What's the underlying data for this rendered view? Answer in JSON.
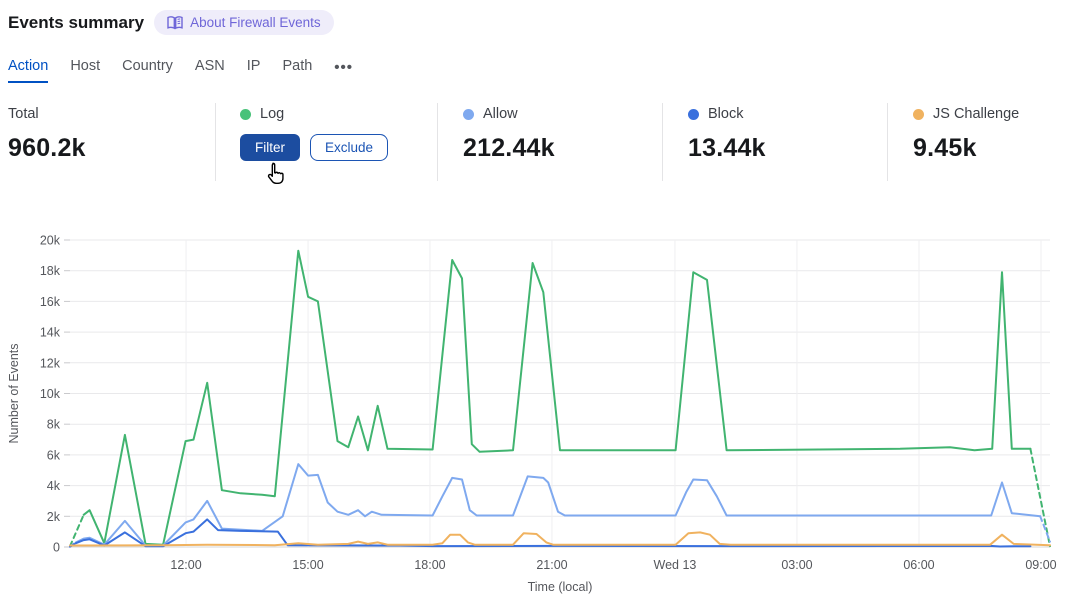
{
  "header": {
    "title": "Events summary",
    "about_label": "About Firewall Events"
  },
  "tabs": {
    "items": [
      {
        "label": "Action",
        "active": true
      },
      {
        "label": "Host",
        "active": false
      },
      {
        "label": "Country",
        "active": false
      },
      {
        "label": "ASN",
        "active": false
      },
      {
        "label": "IP",
        "active": false
      },
      {
        "label": "Path",
        "active": false
      }
    ],
    "more_label": "•••"
  },
  "stats": {
    "columns": [
      {
        "label": "Total",
        "value": "960.2k",
        "dot_color": null,
        "hovered": false
      },
      {
        "label": "Log",
        "value": null,
        "dot_color": "#48c279",
        "hovered": true,
        "buttons": [
          {
            "label": "Filter",
            "style": "primary"
          },
          {
            "label": "Exclude",
            "style": "secondary"
          }
        ]
      },
      {
        "label": "Allow",
        "value": "212.44k",
        "dot_color": "#7fa9ef",
        "hovered": false
      },
      {
        "label": "Block",
        "value": "13.44k",
        "dot_color": "#3a70dd",
        "hovered": false
      },
      {
        "label": "JS Challenge",
        "value": "9.45k",
        "dot_color": "#f0b25f",
        "hovered": false
      }
    ],
    "accent_primary_button": "#1c4da0"
  },
  "chart_data": {
    "type": "line",
    "title": "",
    "xlabel": "Time (local)",
    "ylabel": "Number of Events",
    "value_unit": "thousands of events",
    "ylim_k": [
      0,
      20
    ],
    "grid": true,
    "legend_position": "stats-row-above-chart",
    "y_ticks": [
      {
        "label": "0",
        "v": 0
      },
      {
        "label": "2k",
        "v": 2
      },
      {
        "label": "4k",
        "v": 4
      },
      {
        "label": "6k",
        "v": 6
      },
      {
        "label": "8k",
        "v": 8
      },
      {
        "label": "10k",
        "v": 10
      },
      {
        "label": "12k",
        "v": 12
      },
      {
        "label": "14k",
        "v": 14
      },
      {
        "label": "16k",
        "v": 16
      },
      {
        "label": "18k",
        "v": 18
      },
      {
        "label": "20k",
        "v": 20
      }
    ],
    "x_ticks": [
      {
        "label": "12:00",
        "f": 0.1184
      },
      {
        "label": "15:00",
        "f": 0.2429
      },
      {
        "label": "18:00",
        "f": 0.3673
      },
      {
        "label": "21:00",
        "f": 0.4918
      },
      {
        "label": "Wed 13",
        "f": 0.6173
      },
      {
        "label": "03:00",
        "f": 0.7418
      },
      {
        "label": "06:00",
        "f": 0.8663
      },
      {
        "label": "09:00",
        "f": 0.9908
      }
    ],
    "series": [
      {
        "name": "Log",
        "color": "#41b470",
        "segments": [
          {
            "dashed": true,
            "points": [
              [
                0.0,
                0.05
              ],
              [
                0.014,
                2.1
              ]
            ]
          },
          {
            "dashed": false,
            "points": [
              [
                0.014,
                2.1
              ],
              [
                0.02,
                2.4
              ],
              [
                0.035,
                0.25
              ],
              [
                0.056,
                7.3
              ],
              [
                0.077,
                0.2
              ],
              [
                0.095,
                0.15
              ],
              [
                0.118,
                6.9
              ],
              [
                0.126,
                7.0
              ],
              [
                0.14,
                10.7
              ],
              [
                0.155,
                3.7
              ],
              [
                0.174,
                3.5
              ],
              [
                0.196,
                3.4
              ],
              [
                0.209,
                3.3
              ],
              [
                0.233,
                19.3
              ],
              [
                0.243,
                16.3
              ],
              [
                0.253,
                16.0
              ],
              [
                0.273,
                6.9
              ],
              [
                0.284,
                6.5
              ],
              [
                0.294,
                8.5
              ],
              [
                0.304,
                6.3
              ],
              [
                0.314,
                9.2
              ],
              [
                0.324,
                6.4
              ],
              [
                0.37,
                6.35
              ],
              [
                0.39,
                18.7
              ],
              [
                0.4,
                17.5
              ],
              [
                0.41,
                6.7
              ],
              [
                0.418,
                6.2
              ],
              [
                0.452,
                6.3
              ],
              [
                0.472,
                18.5
              ],
              [
                0.483,
                16.6
              ],
              [
                0.5,
                6.3
              ],
              [
                0.618,
                6.3
              ],
              [
                0.636,
                17.9
              ],
              [
                0.65,
                17.4
              ],
              [
                0.67,
                6.3
              ],
              [
                0.847,
                6.4
              ],
              [
                0.898,
                6.5
              ],
              [
                0.923,
                6.3
              ],
              [
                0.941,
                6.4
              ],
              [
                0.951,
                17.9
              ],
              [
                0.961,
                6.4
              ],
              [
                0.98,
                6.4
              ]
            ]
          },
          {
            "dashed": true,
            "points": [
              [
                0.98,
                6.4
              ],
              [
                1.0,
                0.05
              ]
            ]
          }
        ]
      },
      {
        "name": "Allow",
        "color": "#7fa9ef",
        "segments": [
          {
            "dashed": true,
            "points": [
              [
                0.0,
                0.05
              ],
              [
                0.006,
                0.3
              ]
            ]
          },
          {
            "dashed": false,
            "points": [
              [
                0.006,
                0.3
              ],
              [
                0.014,
                0.55
              ],
              [
                0.02,
                0.6
              ],
              [
                0.035,
                0.15
              ],
              [
                0.056,
                1.7
              ],
              [
                0.077,
                0.1
              ],
              [
                0.095,
                0.1
              ],
              [
                0.118,
                1.6
              ],
              [
                0.126,
                1.8
              ],
              [
                0.14,
                3.0
              ],
              [
                0.155,
                1.2
              ],
              [
                0.196,
                1.05
              ],
              [
                0.217,
                2.0
              ],
              [
                0.233,
                5.4
              ],
              [
                0.243,
                4.65
              ],
              [
                0.253,
                4.7
              ],
              [
                0.263,
                2.9
              ],
              [
                0.273,
                2.3
              ],
              [
                0.284,
                2.1
              ],
              [
                0.294,
                2.4
              ],
              [
                0.301,
                2.0
              ],
              [
                0.308,
                2.3
              ],
              [
                0.318,
                2.1
              ],
              [
                0.37,
                2.05
              ],
              [
                0.38,
                3.3
              ],
              [
                0.39,
                4.5
              ],
              [
                0.4,
                4.4
              ],
              [
                0.408,
                2.4
              ],
              [
                0.415,
                2.05
              ],
              [
                0.452,
                2.05
              ],
              [
                0.467,
                4.6
              ],
              [
                0.483,
                4.5
              ],
              [
                0.488,
                4.2
              ],
              [
                0.498,
                2.3
              ],
              [
                0.505,
                2.05
              ],
              [
                0.618,
                2.05
              ],
              [
                0.629,
                3.6
              ],
              [
                0.636,
                4.4
              ],
              [
                0.65,
                4.35
              ],
              [
                0.66,
                3.3
              ],
              [
                0.67,
                2.05
              ],
              [
                0.94,
                2.05
              ],
              [
                0.951,
                4.2
              ],
              [
                0.961,
                2.2
              ],
              [
                0.99,
                2.0
              ]
            ]
          },
          {
            "dashed": true,
            "points": [
              [
                0.99,
                2.0
              ],
              [
                1.0,
                0.35
              ]
            ]
          }
        ]
      },
      {
        "name": "Block",
        "color": "#3a70dd",
        "segments": [
          {
            "dashed": true,
            "points": [
              [
                0.0,
                0.02
              ],
              [
                0.006,
                0.25
              ]
            ]
          },
          {
            "dashed": false,
            "points": [
              [
                0.006,
                0.25
              ],
              [
                0.014,
                0.45
              ],
              [
                0.02,
                0.5
              ],
              [
                0.035,
                0.1
              ],
              [
                0.056,
                0.95
              ],
              [
                0.077,
                0.05
              ],
              [
                0.095,
                0.05
              ],
              [
                0.118,
                0.9
              ],
              [
                0.126,
                1.0
              ],
              [
                0.14,
                1.8
              ],
              [
                0.151,
                1.1
              ],
              [
                0.174,
                1.05
              ],
              [
                0.212,
                1.0
              ],
              [
                0.222,
                0.12
              ],
              [
                0.337,
                0.1
              ],
              [
                0.37,
                0.06
              ],
              [
                0.5,
                0.07
              ],
              [
                0.67,
                0.06
              ],
              [
                0.939,
                0.07
              ],
              [
                0.949,
                0.03
              ],
              [
                0.964,
                0.05
              ],
              [
                0.98,
                0.05
              ]
            ]
          }
        ]
      },
      {
        "name": "JS Challenge",
        "color": "#f0b25f",
        "segments": [
          {
            "dashed": false,
            "points": [
              [
                0.0,
                0.1
              ],
              [
                0.095,
                0.12
              ],
              [
                0.14,
                0.15
              ],
              [
                0.209,
                0.12
              ],
              [
                0.233,
                0.25
              ],
              [
                0.253,
                0.15
              ],
              [
                0.284,
                0.2
              ],
              [
                0.294,
                0.35
              ],
              [
                0.304,
                0.2
              ],
              [
                0.314,
                0.3
              ],
              [
                0.324,
                0.15
              ],
              [
                0.37,
                0.15
              ],
              [
                0.38,
                0.25
              ],
              [
                0.388,
                0.8
              ],
              [
                0.398,
                0.8
              ],
              [
                0.406,
                0.3
              ],
              [
                0.413,
                0.15
              ],
              [
                0.452,
                0.15
              ],
              [
                0.463,
                0.9
              ],
              [
                0.476,
                0.85
              ],
              [
                0.486,
                0.3
              ],
              [
                0.493,
                0.15
              ],
              [
                0.618,
                0.15
              ],
              [
                0.631,
                0.9
              ],
              [
                0.643,
                0.95
              ],
              [
                0.653,
                0.8
              ],
              [
                0.663,
                0.2
              ],
              [
                0.674,
                0.15
              ],
              [
                0.939,
                0.15
              ],
              [
                0.951,
                0.8
              ],
              [
                0.963,
                0.2
              ],
              [
                1.0,
                0.12
              ]
            ]
          }
        ]
      }
    ]
  }
}
